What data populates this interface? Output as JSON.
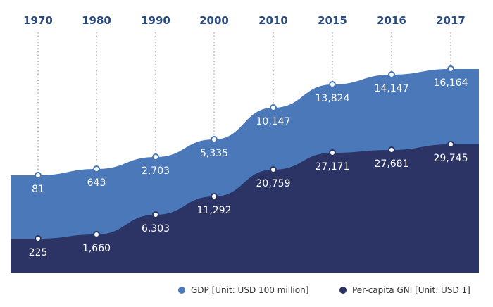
{
  "chart_data": {
    "type": "area",
    "categories": [
      "1970",
      "1980",
      "1990",
      "2000",
      "2010",
      "2015",
      "2016",
      "2017"
    ],
    "series": [
      {
        "name": "GDP [Unit: USD 100 million]",
        "values": [
          81,
          643,
          2703,
          5335,
          10147,
          13824,
          14147,
          16164
        ],
        "labels": [
          "81",
          "643",
          "2,703",
          "5,335",
          "10,147",
          "13,824",
          "14,147",
          "16,164"
        ],
        "color": "#4a78b8"
      },
      {
        "name": "Per-capita GNI [Unit: USD 1]",
        "values": [
          225,
          1660,
          6303,
          11292,
          20759,
          27171,
          27681,
          29745
        ],
        "labels": [
          "225",
          "1,660",
          "6,303",
          "11,292",
          "20,759",
          "27,171",
          "27,681",
          "29,745"
        ],
        "color": "#2b3464"
      }
    ],
    "title": "",
    "xlabel": "",
    "ylabel": "",
    "grid": false,
    "legend_position": "bottom-right",
    "year_label_color": "#2a4a82"
  }
}
